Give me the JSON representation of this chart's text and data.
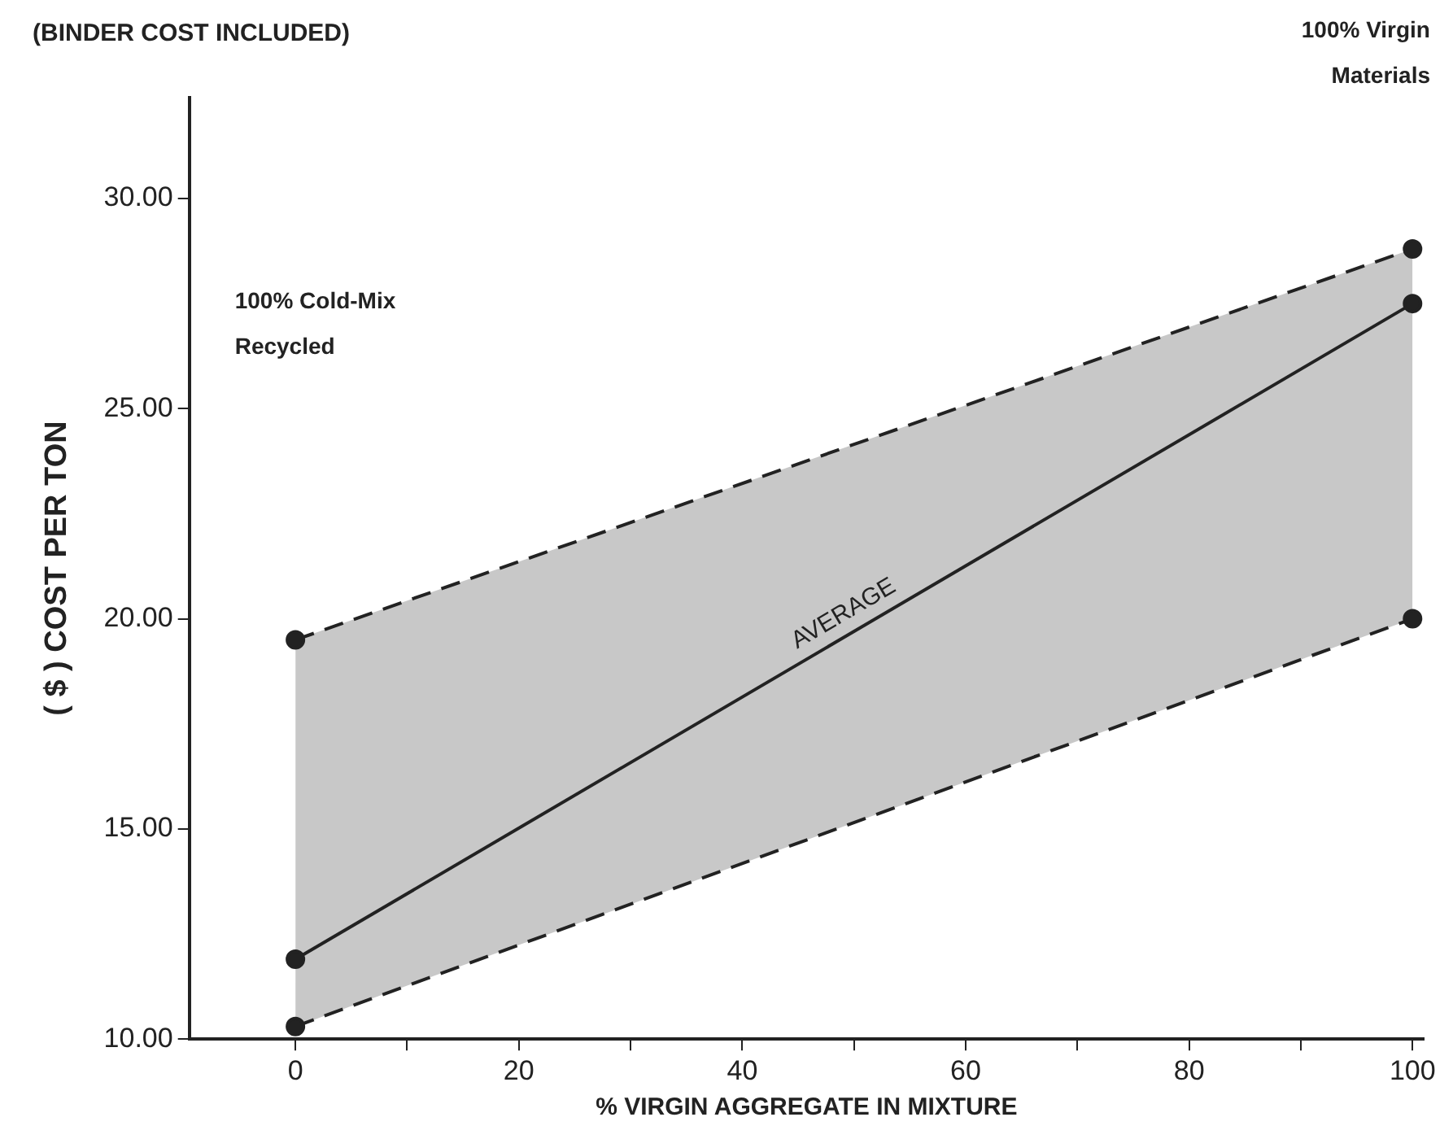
{
  "chart_data": {
    "type": "line",
    "title": "(BINDER COST INCLUDED)",
    "xlabel": "% VIRGIN AGGREGATE IN MIXTURE",
    "ylabel": "( $ ) COST PER TON",
    "annotations": [
      "100% Cold-Mix Recycled",
      "100% Virgin Materials"
    ],
    "x": [
      0,
      100
    ],
    "series": [
      {
        "color": "#222222",
        "values": [
          19.5,
          28.8
        ],
        "line_style": "dashed"
      },
      {
        "name": "AVERAGE",
        "color": "#222222",
        "values": [
          11.9,
          27.5
        ],
        "lower": [
          10.3,
          20.0
        ],
        "upper": [
          19.5,
          28.8
        ]
      },
      {
        "color": "#222222",
        "values": [
          10.3,
          20.0
        ],
        "line_style": "dashed"
      }
    ],
    "xlim": [
      -9.5,
      101
    ],
    "xticks": [
      0,
      {
        "value": 10,
        "label": null
      },
      20,
      {
        "value": 30,
        "label": null
      },
      40,
      {
        "value": 50,
        "label": null
      },
      60,
      {
        "value": 70,
        "label": null
      },
      80,
      {
        "value": 90,
        "label": null
      },
      100
    ],
    "ylim": [
      10,
      32.4
    ],
    "yticks": [
      {
        "value": 10,
        "label": "10.00"
      },
      {
        "value": 15,
        "label": "15.00"
      },
      {
        "value": 20,
        "label": "20.00"
      },
      {
        "value": 25,
        "label": "25.00"
      },
      {
        "value": 30,
        "label": "30.00"
      }
    ],
    "grid": false,
    "legend": false,
    "marker": "circle",
    "line_style": "solid"
  }
}
